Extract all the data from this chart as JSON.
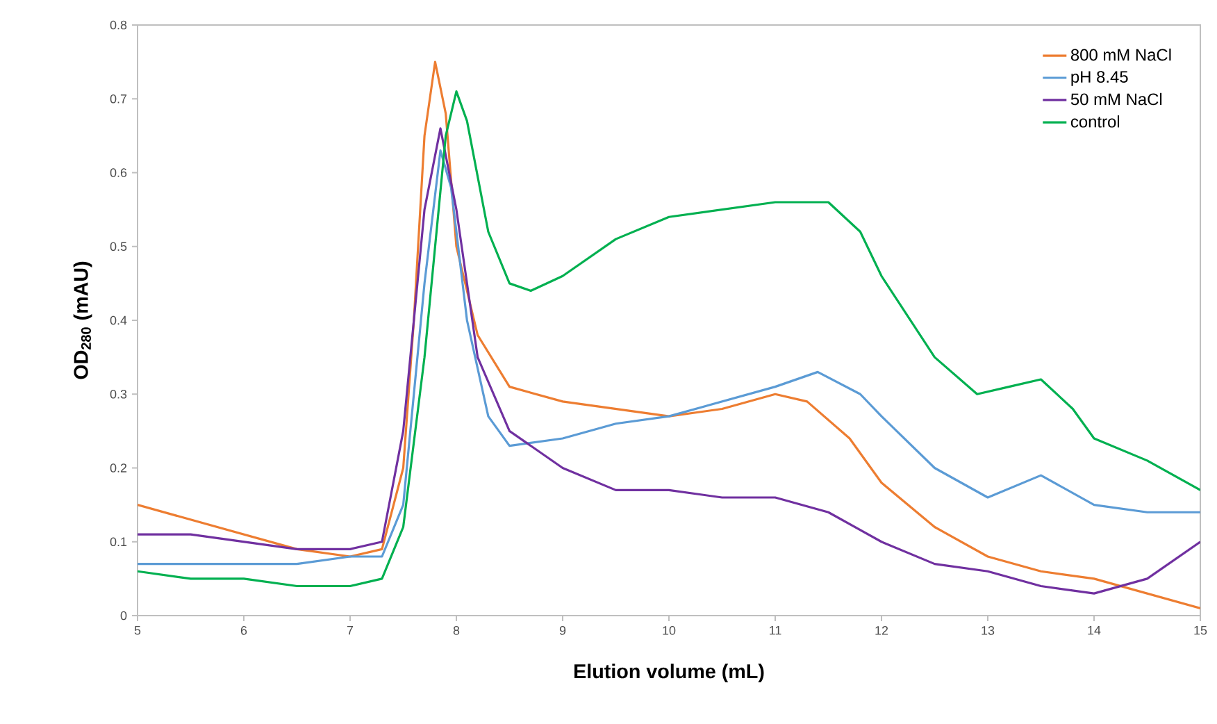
{
  "chart_data": {
    "type": "line",
    "xlabel": "Elution volume (mL)",
    "ylabel": "OD$_{280}$ (mAU)",
    "xlim": [
      5,
      15
    ],
    "ylim": [
      0,
      0.8
    ],
    "xticks": [
      5,
      6,
      7,
      8,
      9,
      10,
      11,
      12,
      13,
      14,
      15
    ],
    "yticks": [
      0,
      0.1,
      0.2,
      0.3,
      0.4,
      0.5,
      0.6,
      0.7,
      0.8
    ],
    "grid": false,
    "legend": "top right",
    "marker": "none",
    "line_style": "solid",
    "series": [
      {
        "name": "800 mM NaCl",
        "color": "#ed7d31",
        "x": [
          5,
          5.5,
          6,
          6.5,
          7,
          7.3,
          7.5,
          7.6,
          7.7,
          7.8,
          7.9,
          8.0,
          8.2,
          8.5,
          9,
          9.5,
          10,
          10.5,
          11,
          11.3,
          11.7,
          12,
          12.5,
          13,
          13.5,
          14,
          14.5,
          15
        ],
        "values": [
          0.15,
          0.13,
          0.11,
          0.09,
          0.08,
          0.09,
          0.2,
          0.4,
          0.65,
          0.75,
          0.68,
          0.5,
          0.38,
          0.31,
          0.29,
          0.28,
          0.27,
          0.28,
          0.3,
          0.29,
          0.24,
          0.18,
          0.12,
          0.08,
          0.06,
          0.05,
          0.03,
          0.01
        ]
      },
      {
        "name": "pH 8.45",
        "color": "#5b9bd5",
        "x": [
          5,
          5.5,
          6,
          6.5,
          7,
          7.3,
          7.5,
          7.7,
          7.85,
          7.95,
          8.1,
          8.3,
          8.5,
          9,
          9.5,
          10,
          10.5,
          11,
          11.4,
          11.8,
          12,
          12.5,
          13,
          13.5,
          14,
          14.5,
          15
        ],
        "values": [
          0.07,
          0.07,
          0.07,
          0.07,
          0.08,
          0.08,
          0.15,
          0.45,
          0.63,
          0.58,
          0.4,
          0.27,
          0.23,
          0.24,
          0.26,
          0.27,
          0.29,
          0.31,
          0.33,
          0.3,
          0.27,
          0.2,
          0.16,
          0.19,
          0.15,
          0.14,
          0.14
        ]
      },
      {
        "name": "50 mM NaCl",
        "color": "#7030a0",
        "x": [
          5,
          5.5,
          6,
          6.5,
          7,
          7.3,
          7.5,
          7.7,
          7.85,
          8.0,
          8.2,
          8.5,
          9,
          9.5,
          10,
          10.5,
          11,
          11.5,
          12,
          12.5,
          13,
          13.5,
          14,
          14.5,
          15
        ],
        "values": [
          0.11,
          0.11,
          0.1,
          0.09,
          0.09,
          0.1,
          0.25,
          0.55,
          0.66,
          0.55,
          0.35,
          0.25,
          0.2,
          0.17,
          0.17,
          0.16,
          0.16,
          0.14,
          0.1,
          0.07,
          0.06,
          0.04,
          0.03,
          0.05,
          0.1
        ]
      },
      {
        "name": "control",
        "color": "#00b050",
        "x": [
          5,
          5.5,
          6,
          6.5,
          7,
          7.3,
          7.5,
          7.7,
          7.9,
          8.0,
          8.1,
          8.3,
          8.5,
          8.7,
          9,
          9.5,
          10,
          10.5,
          11,
          11.5,
          11.8,
          12,
          12.5,
          12.9,
          13.2,
          13.5,
          13.8,
          14,
          14.5,
          15
        ],
        "values": [
          0.06,
          0.05,
          0.05,
          0.04,
          0.04,
          0.05,
          0.12,
          0.35,
          0.65,
          0.71,
          0.67,
          0.52,
          0.45,
          0.44,
          0.46,
          0.51,
          0.54,
          0.55,
          0.56,
          0.56,
          0.52,
          0.46,
          0.35,
          0.3,
          0.31,
          0.32,
          0.28,
          0.24,
          0.21,
          0.17
        ]
      }
    ]
  }
}
